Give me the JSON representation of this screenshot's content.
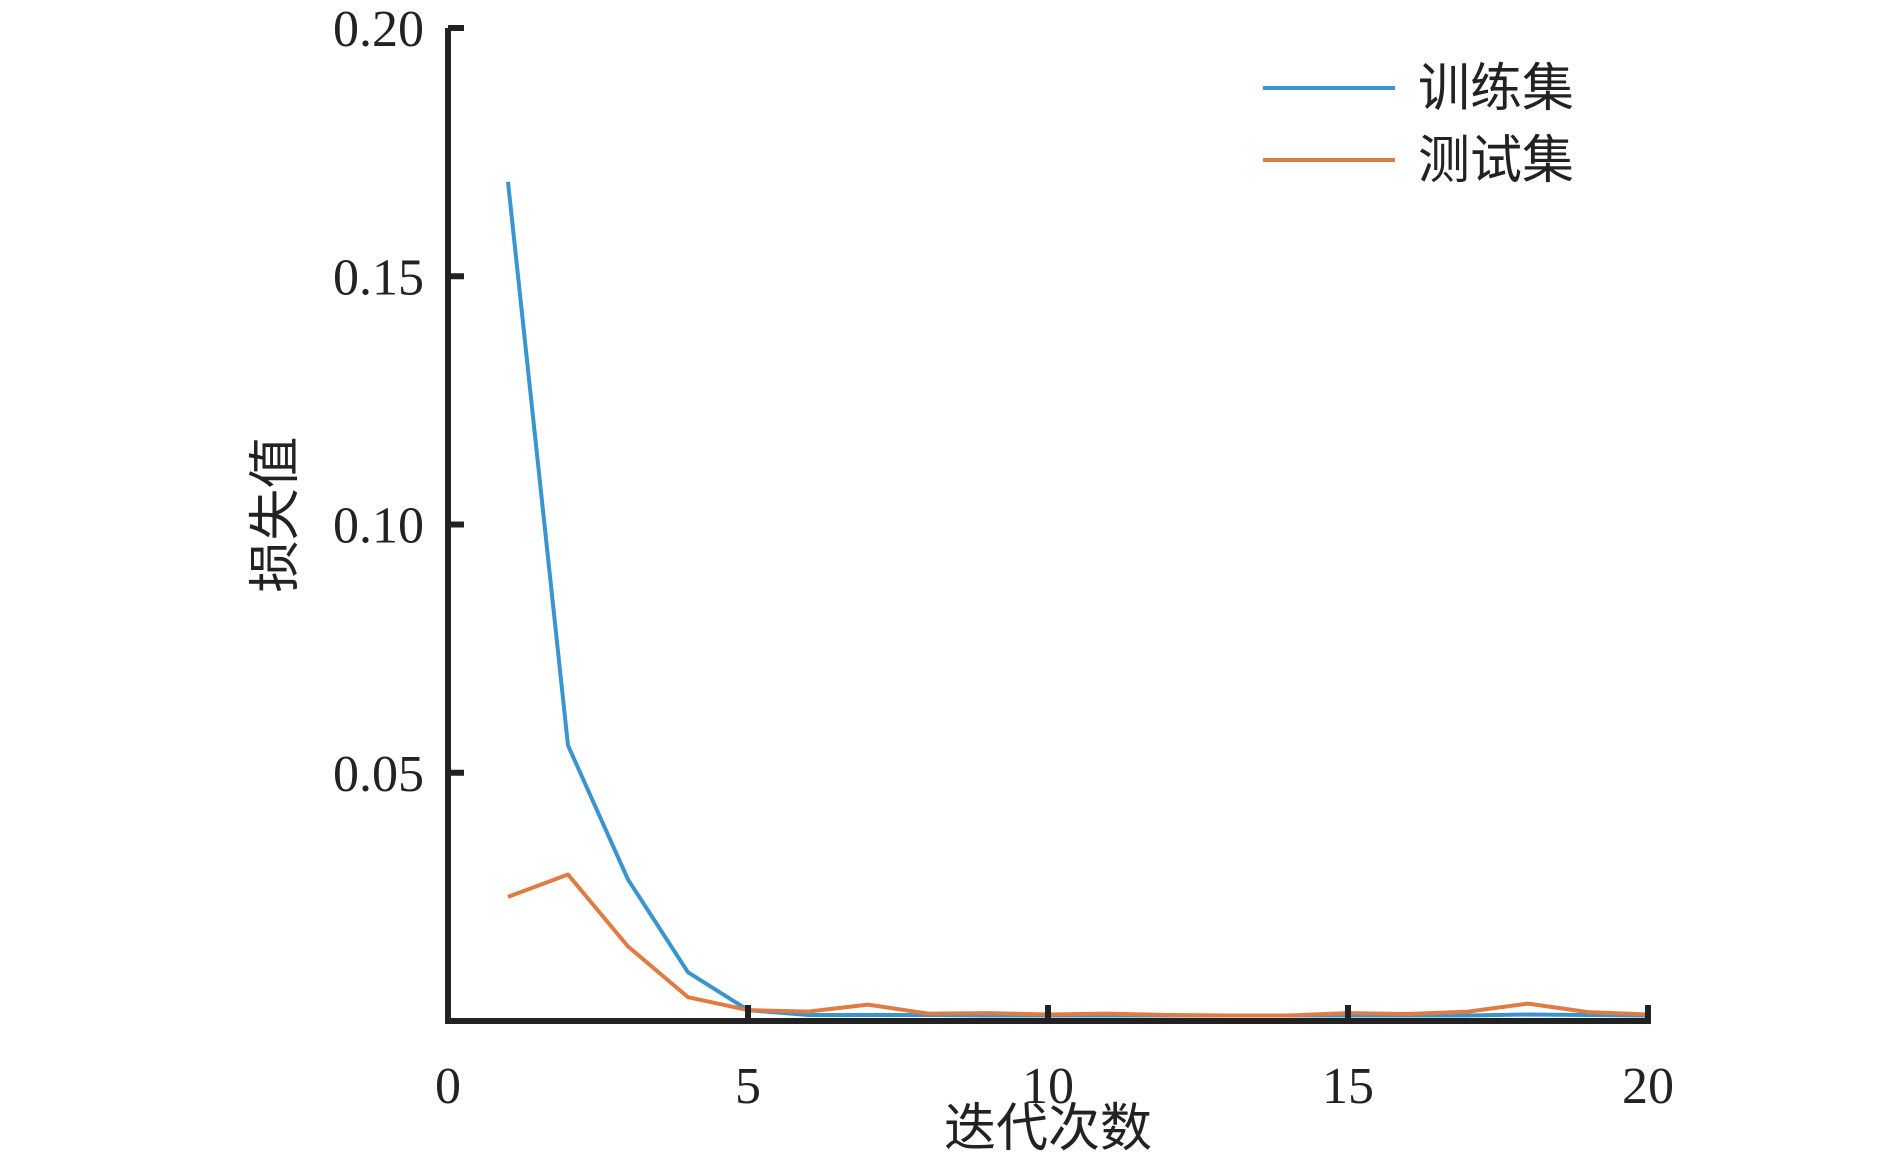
{
  "chart_data": {
    "type": "line",
    "title": "",
    "xlabel": "迭代次数",
    "ylabel": "损失值",
    "xlim": [
      0,
      20
    ],
    "ylim": [
      0,
      0.2
    ],
    "xticks": [
      0,
      5,
      10,
      15,
      20
    ],
    "xtick_labels": [
      "0",
      "5",
      "10",
      "15",
      "20"
    ],
    "yticks": [
      0.05,
      0.1,
      0.15,
      0.2
    ],
    "ytick_labels": [
      "0.05",
      "0.10",
      "0.15",
      "0.20"
    ],
    "grid": false,
    "legend_position": "top-right",
    "x": [
      1,
      2,
      3,
      4,
      5,
      6,
      7,
      8,
      9,
      10,
      11,
      12,
      13,
      14,
      15,
      16,
      17,
      18,
      19,
      20
    ],
    "series": [
      {
        "name": "训练集",
        "color": "#3a95cf",
        "values": [
          0.169,
          0.0555,
          0.0285,
          0.0098,
          0.0022,
          0.0012,
          0.0012,
          0.0012,
          0.0011,
          0.0011,
          0.0011,
          0.0011,
          0.0011,
          0.0011,
          0.0011,
          0.0011,
          0.0011,
          0.0013,
          0.0012,
          0.0011
        ]
      },
      {
        "name": "测试集",
        "color": "#df7c43",
        "values": [
          0.025,
          0.0295,
          0.015,
          0.0048,
          0.0022,
          0.0019,
          0.0033,
          0.0015,
          0.0016,
          0.0013,
          0.0015,
          0.0012,
          0.0011,
          0.0011,
          0.0016,
          0.0014,
          0.0019,
          0.0035,
          0.0018,
          0.0013
        ]
      }
    ]
  }
}
